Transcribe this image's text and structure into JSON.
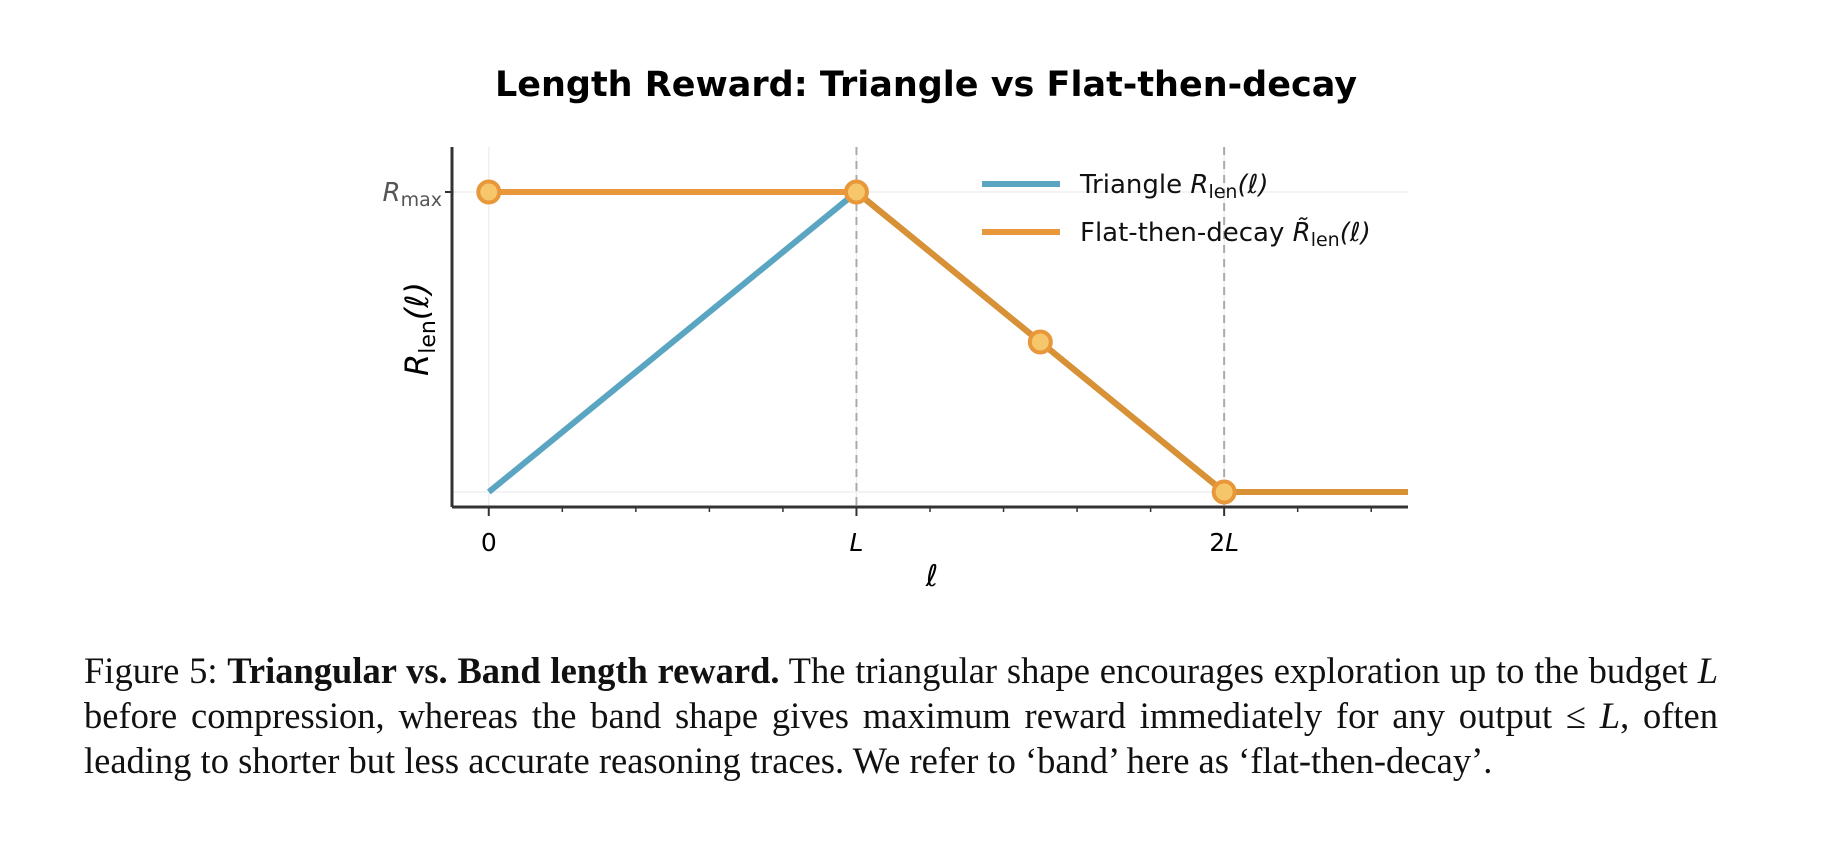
{
  "chart_data": {
    "type": "line",
    "title": "Length Reward: Triangle vs Flat-then-decay",
    "xlabel": "ℓ",
    "ylabel": {
      "main": "R",
      "sub": "len",
      "tail": "(ℓ)"
    },
    "xlim": [
      -0.1,
      2.5
    ],
    "ylim": [
      -0.05,
      1.15
    ],
    "x_ticks": [
      {
        "value": 0,
        "label": "0",
        "italic": false
      },
      {
        "value": 1,
        "label": "L",
        "italic": true
      },
      {
        "value": 2,
        "label": "2L",
        "italic": true
      }
    ],
    "x_minor_ticks": [
      0.2,
      0.4,
      0.6,
      0.8,
      1.2,
      1.4,
      1.6,
      1.8,
      2.2,
      2.4
    ],
    "y_ticks": [
      {
        "value": 1,
        "main": "R",
        "sub": "max"
      }
    ],
    "vlines": [
      1,
      2
    ],
    "series": [
      {
        "name": "Triangle",
        "legend": {
          "text": "Triangle ",
          "math_main": "R",
          "math_sub": "len",
          "math_tail": "(ℓ)"
        },
        "color": "#5aa6c2",
        "x": [
          0,
          1,
          2,
          2.5
        ],
        "y": [
          0,
          1,
          0,
          0
        ],
        "markers": []
      },
      {
        "name": "Flat-then-decay",
        "legend": {
          "text": "Flat-then-decay ",
          "math_main": "R̃",
          "math_sub": "len",
          "math_tail": "(ℓ)"
        },
        "color": "#e8973a",
        "x": [
          0,
          1,
          2,
          2.5
        ],
        "y": [
          1,
          1,
          0,
          0
        ],
        "markers": [
          [
            0,
            1
          ],
          [
            1,
            1
          ],
          [
            1.5,
            0.5
          ],
          [
            2,
            0
          ]
        ]
      }
    ],
    "overlap_color": "#d99135",
    "marker_fill": "#f6c76a",
    "marker_edge": "#e8973a",
    "legend_position": "top-right"
  },
  "caption": {
    "prefix": "Figure 5:",
    "bold": "Triangular vs. Band length reward.",
    "part1": " The triangular shape encourages exploration up to the budget ",
    "math_L1": "L",
    "part2": " before compression, whereas the band shape gives maximum reward immediately for any output ",
    "math_le": "≤",
    "math_L2": " L",
    "part3": ", often leading to shorter but less accurate reasoning traces. We refer to ‘band’ here as ‘flat-then-decay’."
  }
}
